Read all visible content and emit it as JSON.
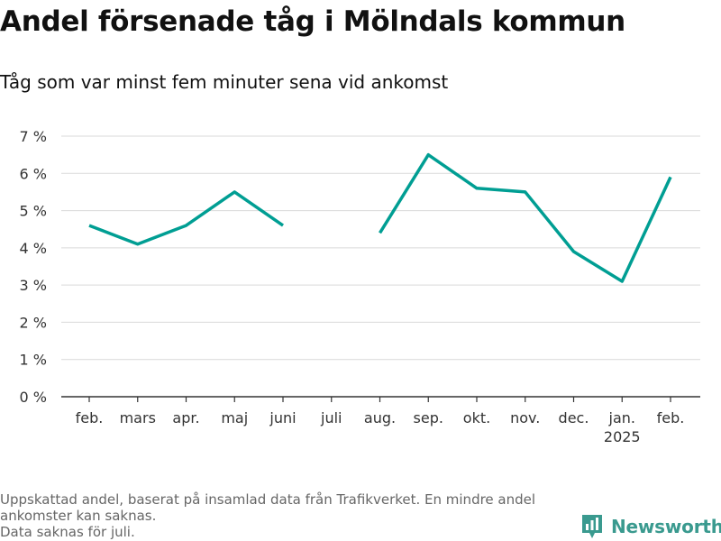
{
  "title": "Andel försenade tåg i Mölndals kommun",
  "subtitle": "Tåg som var minst fem minuter sena vid ankomst",
  "footer": {
    "line1": "Uppskattad andel, baserat på insamlad data från Trafikverket. En mindre andel ankomster kan saknas.",
    "line2": "Data saknas för juli."
  },
  "brand": {
    "name": "Newsworthy",
    "icon": "bar-chart-icon",
    "color": "#3a9a8f"
  },
  "chart_data": {
    "type": "line",
    "title": "Andel försenade tåg i Mölndals kommun",
    "subtitle": "Tåg som var minst fem minuter sena vid ankomst",
    "categories": [
      "feb.",
      "mars",
      "apr.",
      "maj",
      "juni",
      "juli",
      "aug.",
      "sep.",
      "okt.",
      "nov.",
      "dec.",
      "jan.",
      "feb."
    ],
    "category_sublabels": [
      "",
      "",
      "",
      "",
      "",
      "",
      "",
      "",
      "",
      "",
      "",
      "2025",
      ""
    ],
    "series": [
      {
        "values": [
          4.6,
          4.1,
          4.6,
          5.5,
          4.6,
          null,
          4.4,
          6.5,
          5.6,
          5.5,
          3.9,
          3.1,
          5.9
        ],
        "color": "#009e93"
      }
    ],
    "ylim": [
      0,
      7
    ],
    "yticks": [
      0,
      1,
      2,
      3,
      4,
      5,
      6,
      7
    ],
    "ytick_labels": [
      "0 %",
      "1 %",
      "2 %",
      "3 %",
      "4 %",
      "5 %",
      "6 %",
      "7 %"
    ],
    "grid": true,
    "legend": "none"
  }
}
